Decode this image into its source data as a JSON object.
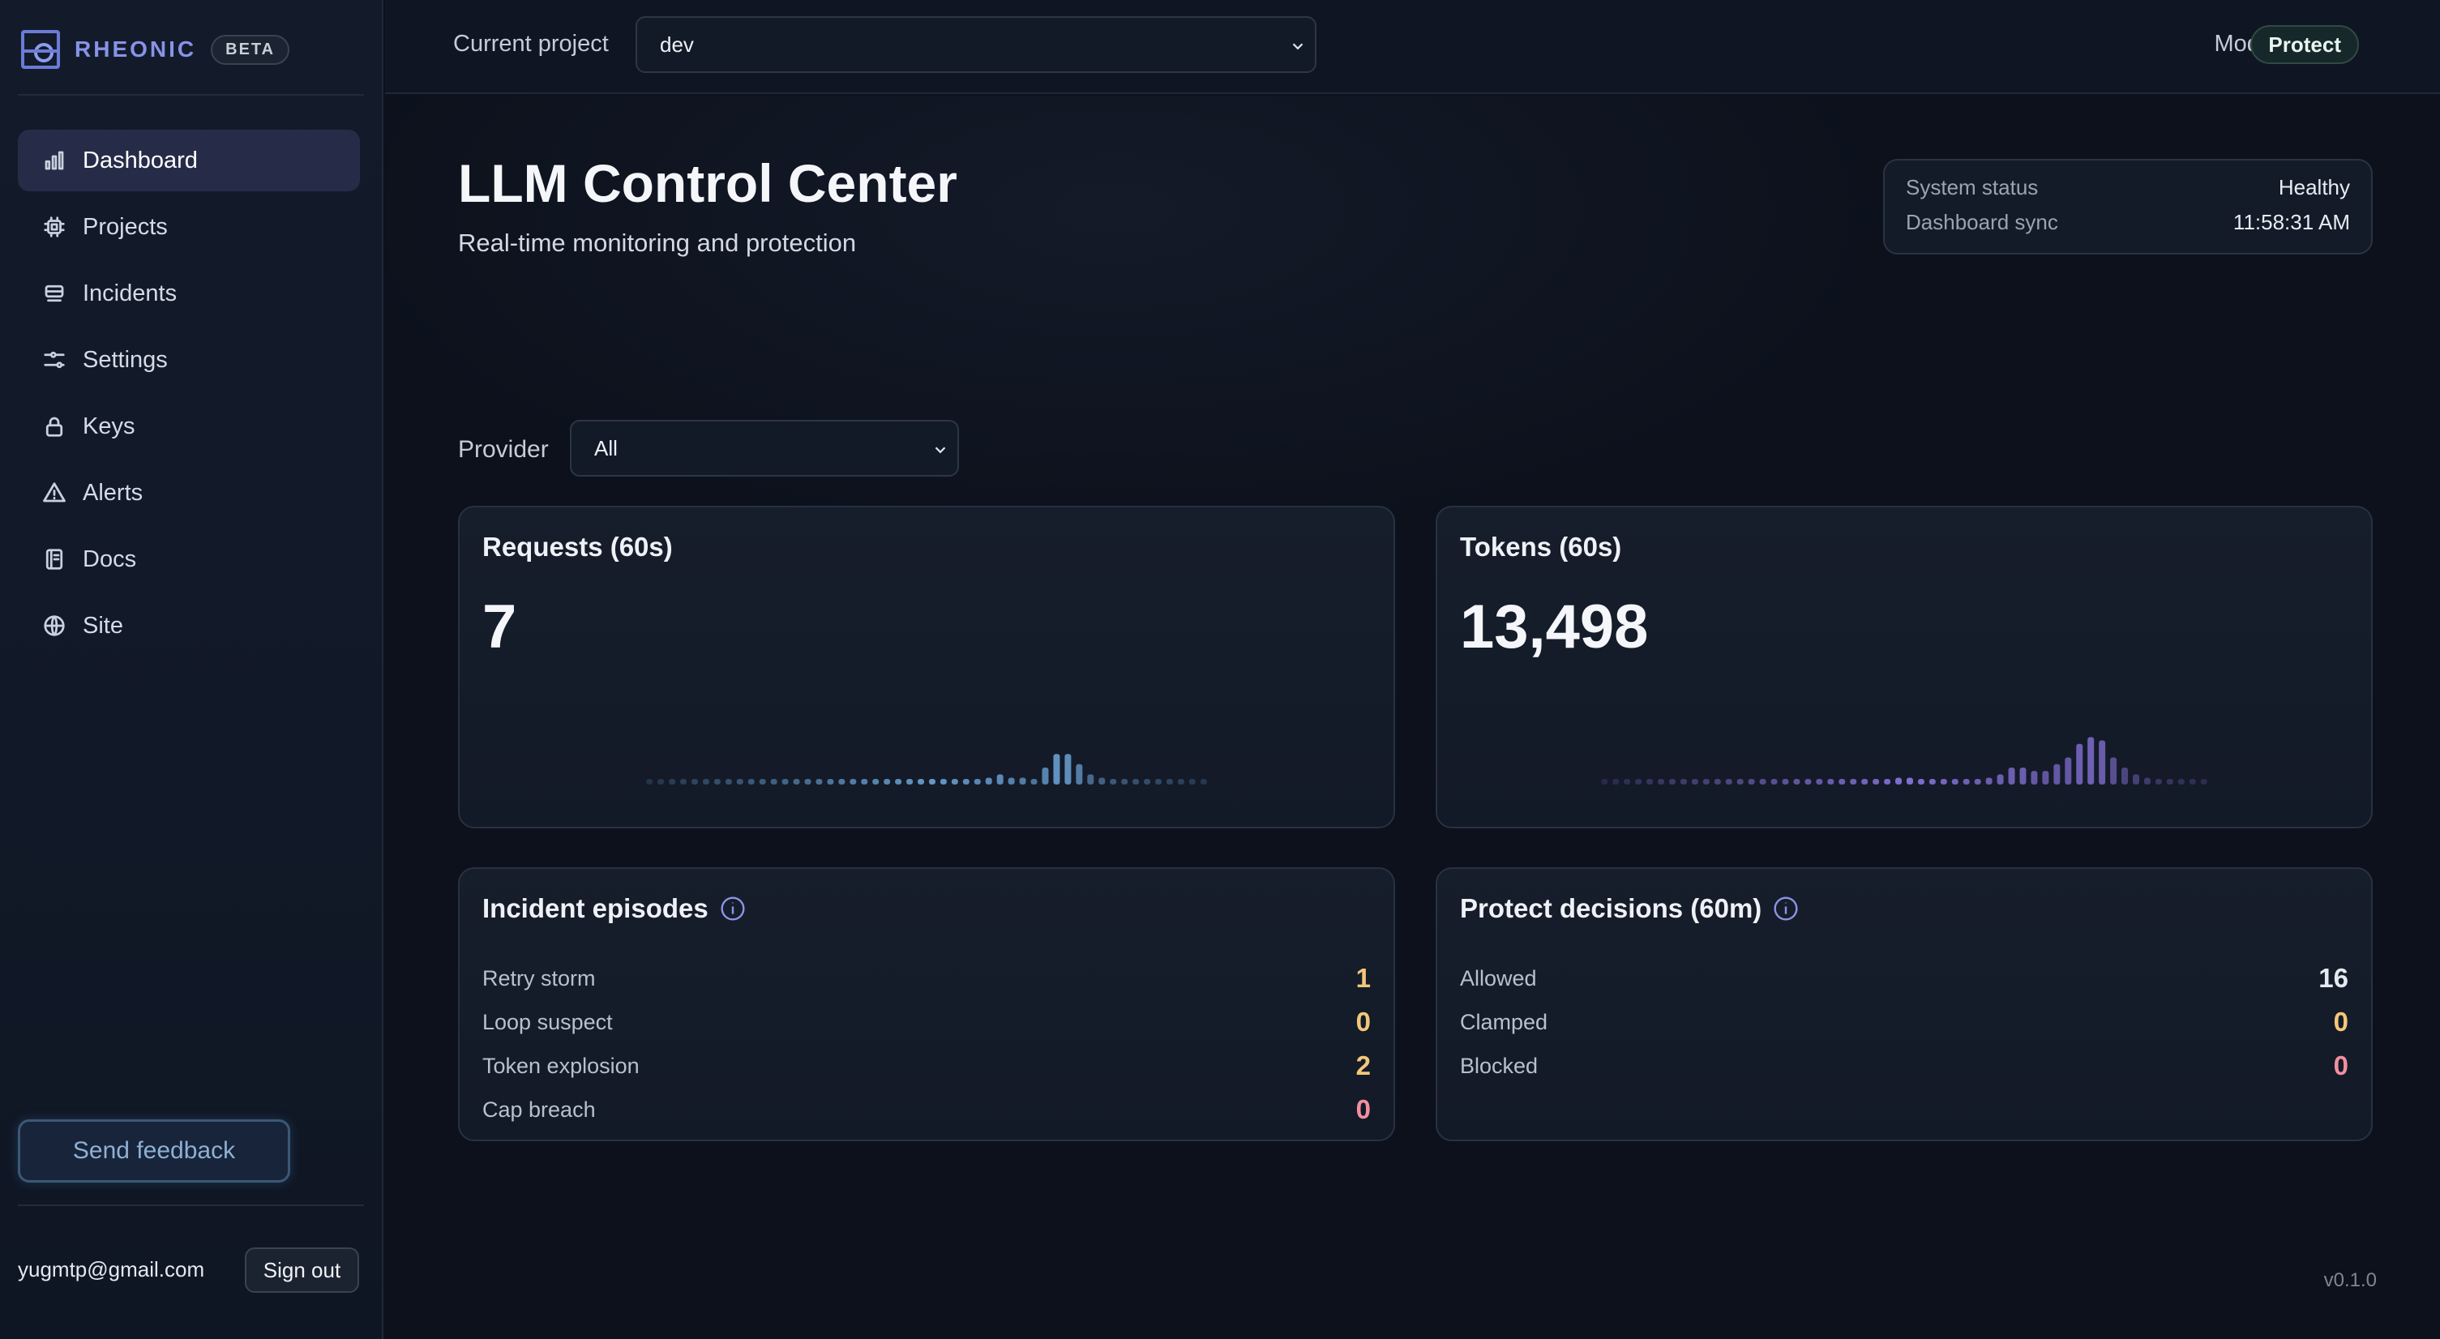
{
  "brand": {
    "name": "RHEONIC",
    "badge": "BETA"
  },
  "sidebar": {
    "items": [
      {
        "label": "Dashboard",
        "icon": "bar-chart-icon",
        "active": true
      },
      {
        "label": "Projects",
        "icon": "chip-icon"
      },
      {
        "label": "Incidents",
        "icon": "stack-icon"
      },
      {
        "label": "Settings",
        "icon": "sliders-icon"
      },
      {
        "label": "Keys",
        "icon": "lock-icon"
      },
      {
        "label": "Alerts",
        "icon": "warning-icon"
      },
      {
        "label": "Docs",
        "icon": "book-icon"
      },
      {
        "label": "Site",
        "icon": "globe-icon"
      }
    ],
    "feedback_label": "Send feedback",
    "user_email": "yugmtp@gmail.com",
    "signout_label": "Sign out"
  },
  "topbar": {
    "project_label": "Current project",
    "project_value": "dev",
    "mode_label": "Mode",
    "mode_value": "Protect"
  },
  "header": {
    "title": "LLM Control Center",
    "subtitle": "Real-time monitoring and protection"
  },
  "status": {
    "system_label": "System status",
    "system_value": "Healthy",
    "sync_label": "Dashboard sync",
    "sync_value": "11:58:31 AM"
  },
  "filter": {
    "provider_label": "Provider",
    "provider_value": "All"
  },
  "requests": {
    "title": "Requests (60s)",
    "value": "7",
    "color": "#6fa8dc",
    "bars": [
      1,
      1,
      1,
      1,
      1,
      1,
      1,
      1,
      1,
      1,
      1,
      1,
      1,
      1,
      1,
      1,
      1,
      1,
      1,
      1,
      1,
      1,
      1,
      1,
      1,
      1,
      1,
      1,
      1,
      1,
      2,
      3,
      2,
      2,
      1,
      5,
      9,
      9,
      6,
      3,
      2,
      1,
      1,
      1,
      1,
      1,
      1,
      1,
      1,
      1
    ]
  },
  "tokens": {
    "title": "Tokens (60s)",
    "value": "13,498",
    "color": "#8f7ae6",
    "bars": [
      1,
      1,
      1,
      1,
      1,
      1,
      1,
      1,
      1,
      1,
      1,
      1,
      1,
      1,
      1,
      1,
      1,
      1,
      1,
      1,
      1,
      1,
      1,
      1,
      1,
      1,
      2,
      2,
      1,
      1,
      1,
      1,
      1,
      1,
      2,
      3,
      5,
      5,
      4,
      4,
      6,
      8,
      12,
      14,
      13,
      8,
      5,
      3,
      2,
      1,
      1,
      1,
      1,
      1
    ]
  },
  "incidents": {
    "title": "Incident episodes",
    "rows": [
      {
        "label": "Retry storm",
        "value": "1",
        "color": "#f3c77a"
      },
      {
        "label": "Loop suspect",
        "value": "0",
        "color": "#f3c77a"
      },
      {
        "label": "Token explosion",
        "value": "2",
        "color": "#f3c77a"
      },
      {
        "label": "Cap breach",
        "value": "0",
        "color": "#f28fa0"
      }
    ]
  },
  "protect": {
    "title": "Protect decisions (60m)",
    "rows": [
      {
        "label": "Allowed",
        "value": "16",
        "color": "#e6eaf0"
      },
      {
        "label": "Clamped",
        "value": "0",
        "color": "#f3c77a"
      },
      {
        "label": "Blocked",
        "value": "0",
        "color": "#f28fa0"
      }
    ]
  },
  "version": "v0.1.0"
}
